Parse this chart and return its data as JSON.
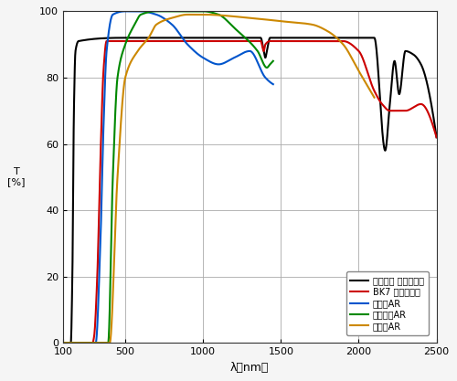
{
  "xlabel": "λ［nm］",
  "ylabel": "T\n[%]",
  "xlim": [
    100,
    2500
  ],
  "ylim": [
    0,
    100
  ],
  "xticks": [
    100,
    500,
    1000,
    1500,
    2000,
    2500
  ],
  "yticks": [
    0,
    20,
    40,
    60,
    80,
    100
  ],
  "background_color": "#f5f5f5",
  "plot_bg_color": "#ffffff",
  "grid_color": "#aaaaaa",
  "legend_labels": [
    "合成石英 ノーコート",
    "BK7 ノーコート",
    "可視域AR",
    "近赤外域AR",
    "赤外域AR"
  ],
  "legend_colors": [
    "#000000",
    "#cc0000",
    "#0055cc",
    "#008800",
    "#cc8800"
  ],
  "line_widths": [
    1.5,
    1.5,
    1.5,
    1.5,
    1.5
  ],
  "black_x": [
    100,
    150,
    160,
    170,
    180,
    200,
    500,
    1000,
    1370,
    1390,
    1400,
    1410,
    1430,
    1500,
    2000,
    2100,
    2170,
    2200,
    2230,
    2260,
    2300,
    2350,
    2400,
    2500
  ],
  "black_y": [
    0,
    0,
    20,
    70,
    88,
    91,
    92,
    92,
    92,
    88,
    86,
    88,
    92,
    92,
    92,
    92,
    58,
    72,
    85,
    75,
    88,
    87,
    84,
    62
  ],
  "red_x": [
    100,
    290,
    300,
    320,
    340,
    360,
    380,
    500,
    1000,
    1370,
    1390,
    1400,
    1430,
    1500,
    1900,
    2000,
    2100,
    2150,
    2200,
    2300,
    2400,
    2500
  ],
  "red_y": [
    0,
    0,
    2,
    20,
    55,
    82,
    91,
    91,
    91,
    91,
    88,
    90,
    91,
    91,
    91,
    88,
    76,
    72,
    70,
    70,
    72,
    62
  ],
  "blue_x": [
    100,
    310,
    340,
    360,
    380,
    420,
    500,
    600,
    700,
    800,
    900,
    1000,
    1100,
    1200,
    1300,
    1400,
    1450
  ],
  "blue_y": [
    0,
    0,
    30,
    65,
    88,
    99,
    100,
    100,
    99,
    96,
    90,
    86,
    84,
    86,
    88,
    80,
    78
  ],
  "green_x": [
    100,
    390,
    420,
    450,
    500,
    560,
    600,
    700,
    800,
    900,
    1000,
    1100,
    1200,
    1350,
    1410,
    1430,
    1450
  ],
  "green_y": [
    0,
    0,
    50,
    80,
    90,
    96,
    99,
    100,
    100,
    100,
    100,
    99,
    95,
    88,
    83,
    84,
    85
  ],
  "orange_x": [
    100,
    400,
    450,
    500,
    580,
    650,
    700,
    800,
    900,
    1000,
    1300,
    1500,
    1700,
    1800,
    1900,
    2000,
    2050,
    2100
  ],
  "orange_y": [
    0,
    0,
    50,
    80,
    88,
    92,
    96,
    98,
    99,
    99,
    98,
    97,
    96,
    94,
    90,
    82,
    78,
    74
  ]
}
